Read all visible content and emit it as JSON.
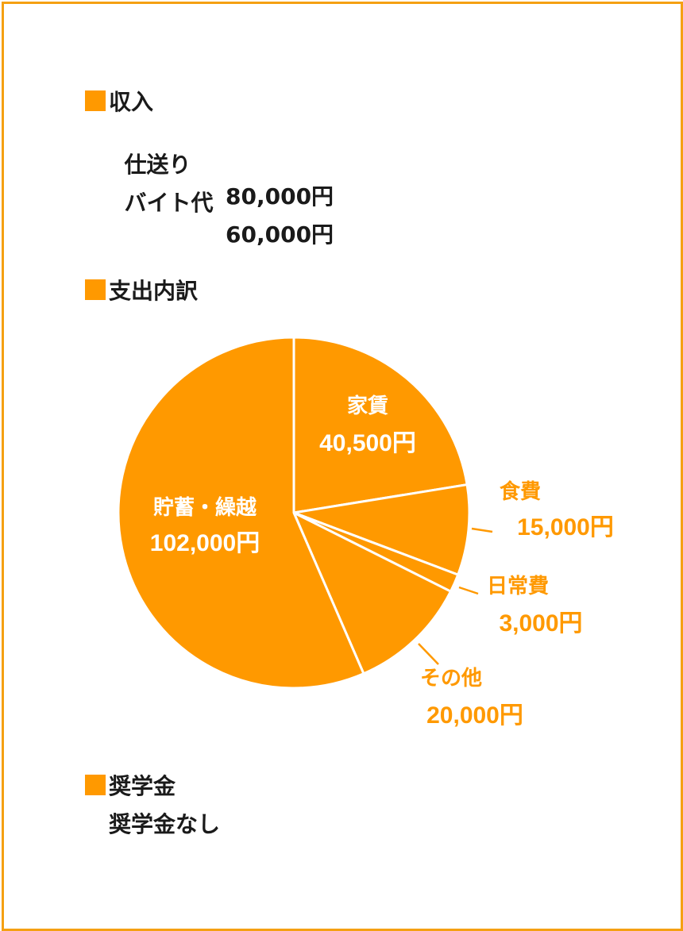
{
  "income": {
    "heading": "収入",
    "items": [
      {
        "label": "仕送り",
        "value": "80,000円"
      },
      {
        "label": "バイト代",
        "value": "60,000円"
      }
    ]
  },
  "expenses": {
    "heading": "支出内訳"
  },
  "scholarship": {
    "heading": "奨学金",
    "text": "奨学金なし"
  },
  "colors": {
    "accent": "#ff9900",
    "frame": "#f5a012",
    "slice": "#ff9900",
    "outer_label": "#ff9900",
    "inner_label": "#ffffff"
  },
  "chart_data": {
    "type": "pie",
    "slices": [
      {
        "name": "家賃",
        "label": "40,500円",
        "value": 40500,
        "label_position": "inside"
      },
      {
        "name": "食費",
        "label": "15,000円",
        "value": 15000,
        "label_position": "outside"
      },
      {
        "name": "日常費",
        "label": "3,000円",
        "value": 3000,
        "label_position": "outside"
      },
      {
        "name": "その他",
        "label": "20,000円",
        "value": 20000,
        "label_position": "outside"
      },
      {
        "name": "貯蓄・繰越",
        "label": "102,000円",
        "value": 102000,
        "label_position": "inside"
      }
    ],
    "start": "top",
    "direction": "clockwise"
  }
}
